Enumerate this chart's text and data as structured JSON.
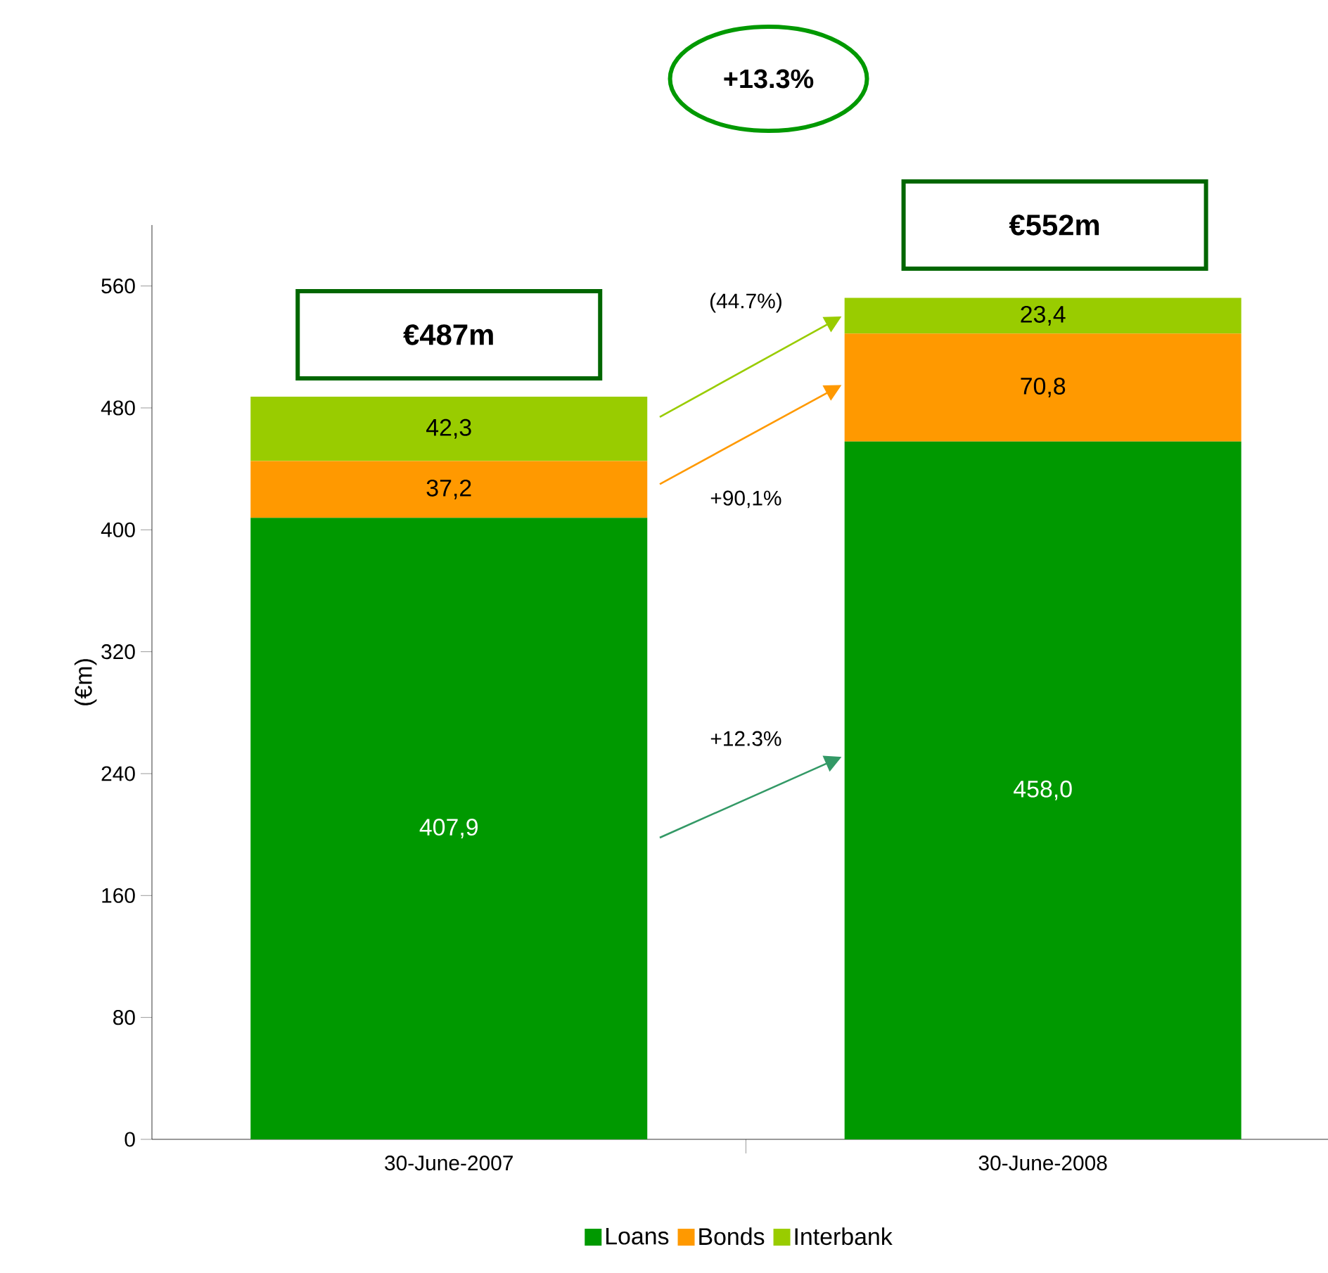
{
  "chart_data": {
    "type": "bar",
    "stacked": true,
    "categories": [
      "30-June-2007",
      "30-June-2008"
    ],
    "series": [
      {
        "name": "Loans",
        "color": "#009900",
        "values": [
          407.9,
          458.0
        ],
        "value_labels": [
          "407,9",
          "458,0"
        ]
      },
      {
        "name": "Bonds",
        "color": "#ff9900",
        "values": [
          37.2,
          70.8
        ],
        "value_labels": [
          "37,2",
          "70,8"
        ]
      },
      {
        "name": "Interbank",
        "color": "#99cc00",
        "values": [
          42.3,
          23.4
        ],
        "value_labels": [
          "42,3",
          "23,4"
        ]
      }
    ],
    "totals": [
      "€487m",
      "€552m"
    ],
    "ylabel": "(€m)",
    "ylim": [
      0,
      600
    ],
    "yticks": [
      0,
      80,
      160,
      240,
      320,
      400,
      480,
      560
    ],
    "annotations": [
      "+13.3%",
      "(44.7%)",
      "+90,1%",
      "+12.3%"
    ],
    "legend": "bottom",
    "grid": false
  }
}
